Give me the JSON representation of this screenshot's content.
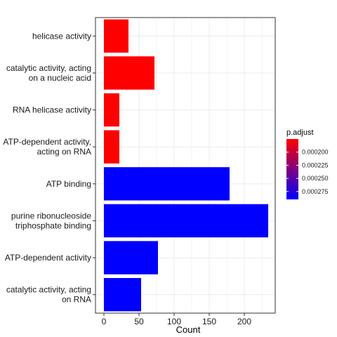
{
  "chart_data": {
    "type": "bar",
    "orientation": "horizontal",
    "xlabel": "Count",
    "ylabel": "",
    "xlim": [
      0,
      235
    ],
    "x_ticks": [
      0,
      50,
      100,
      150,
      200
    ],
    "grid": true,
    "categories": [
      "helicase activity",
      "catalytic activity, acting\non a nucleic acid",
      "RNA helicase activity",
      "ATP-dependent activity,\nacting on RNA",
      "ATP binding",
      "purine ribonucleoside\ntriphosphate binding",
      "ATP-dependent activity",
      "catalytic activity, acting\non RNA"
    ],
    "values": [
      35,
      72,
      22,
      22,
      179,
      234,
      77,
      53
    ],
    "p_adjust": [
      0.000175,
      0.000175,
      0.000175,
      0.000175,
      0.00029,
      0.00029,
      0.00029,
      0.00029
    ],
    "legend": {
      "title": "p.adjust",
      "position": "right",
      "ticks": [
        "0.000200",
        "0.000225",
        "0.000250",
        "0.000275"
      ],
      "tick_values": [
        0.0002,
        0.000225,
        0.00025,
        0.000275
      ],
      "range": [
        0.000175,
        0.00029
      ],
      "color_low": "#ff0000",
      "color_high": "#0000ff"
    }
  }
}
